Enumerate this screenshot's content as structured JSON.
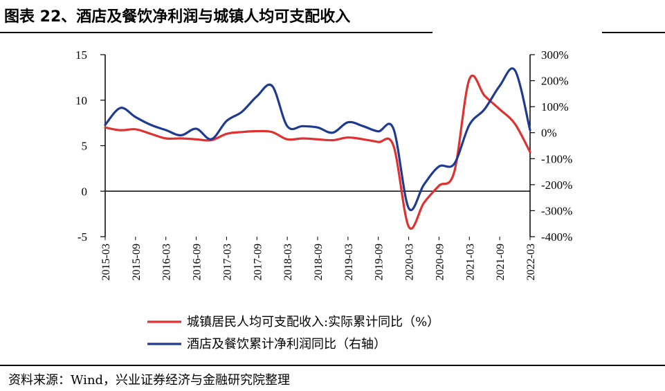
{
  "header": {
    "title": "图表 22、酒店及餐饮净利润与城镇人均可支配收入"
  },
  "footer": {
    "source": "资料来源：Wind，兴业证券经济与金融研究院整理"
  },
  "chart_data": {
    "type": "line",
    "title": "",
    "x_tick_labels": [
      "2015-03",
      "2015-09",
      "2016-03",
      "2016-09",
      "2017-03",
      "2017-09",
      "2018-03",
      "2018-09",
      "2019-03",
      "2019-09",
      "2020-03",
      "2020-09",
      "2021-03",
      "2021-09",
      "2022-03"
    ],
    "y_left": {
      "range": [
        -5,
        15
      ],
      "ticks": [
        15,
        10,
        5,
        0,
        -5
      ],
      "tick_labels": [
        "15",
        "10",
        "5",
        "0",
        "-5"
      ]
    },
    "y_right": {
      "range": [
        -400,
        300
      ],
      "ticks": [
        300,
        200,
        100,
        0,
        -100,
        -200,
        -300,
        -400
      ],
      "tick_labels": [
        "300%",
        "200%",
        "100%",
        "0%",
        "-100%",
        "-200%",
        "-300%",
        "-400%"
      ]
    },
    "grid": false,
    "legend_position": "bottom",
    "series": [
      {
        "name": "城镇居民人均可支配收入:实际累计同比（%）",
        "axis": "left",
        "color": "#e03030",
        "x": [
          "2015-03",
          "2015-06",
          "2015-09",
          "2015-12",
          "2016-03",
          "2016-06",
          "2016-09",
          "2016-12",
          "2017-03",
          "2017-06",
          "2017-09",
          "2017-12",
          "2018-03",
          "2018-06",
          "2018-09",
          "2018-12",
          "2019-03",
          "2019-06",
          "2019-09",
          "2019-12",
          "2020-03",
          "2020-06",
          "2020-09",
          "2020-12",
          "2021-03",
          "2021-06",
          "2021-09",
          "2021-12",
          "2022-03"
        ],
        "values": [
          7.0,
          6.7,
          6.8,
          6.3,
          5.8,
          5.8,
          5.7,
          5.6,
          6.3,
          6.5,
          6.6,
          6.5,
          5.7,
          5.8,
          5.7,
          5.6,
          5.9,
          5.7,
          5.4,
          5.0,
          -3.9,
          -1.3,
          0.6,
          2.1,
          12.3,
          10.5,
          9.0,
          7.4,
          4.3
        ]
      },
      {
        "name": "酒店及餐饮累计净利润同比（右轴）",
        "axis": "right",
        "color": "#1f3a93",
        "x": [
          "2015-03",
          "2015-06",
          "2015-09",
          "2015-12",
          "2016-03",
          "2016-06",
          "2016-09",
          "2016-12",
          "2017-03",
          "2017-06",
          "2017-09",
          "2017-12",
          "2018-03",
          "2018-06",
          "2018-09",
          "2018-12",
          "2019-03",
          "2019-06",
          "2019-09",
          "2019-12",
          "2020-03",
          "2020-06",
          "2020-09",
          "2020-12",
          "2021-03",
          "2021-06",
          "2021-09",
          "2021-12",
          "2022-03"
        ],
        "values": [
          30,
          95,
          60,
          30,
          10,
          -10,
          15,
          -25,
          45,
          80,
          140,
          180,
          25,
          25,
          20,
          0,
          40,
          25,
          5,
          15,
          -290,
          -200,
          -130,
          -120,
          30,
          90,
          180,
          240,
          10
        ]
      }
    ]
  }
}
